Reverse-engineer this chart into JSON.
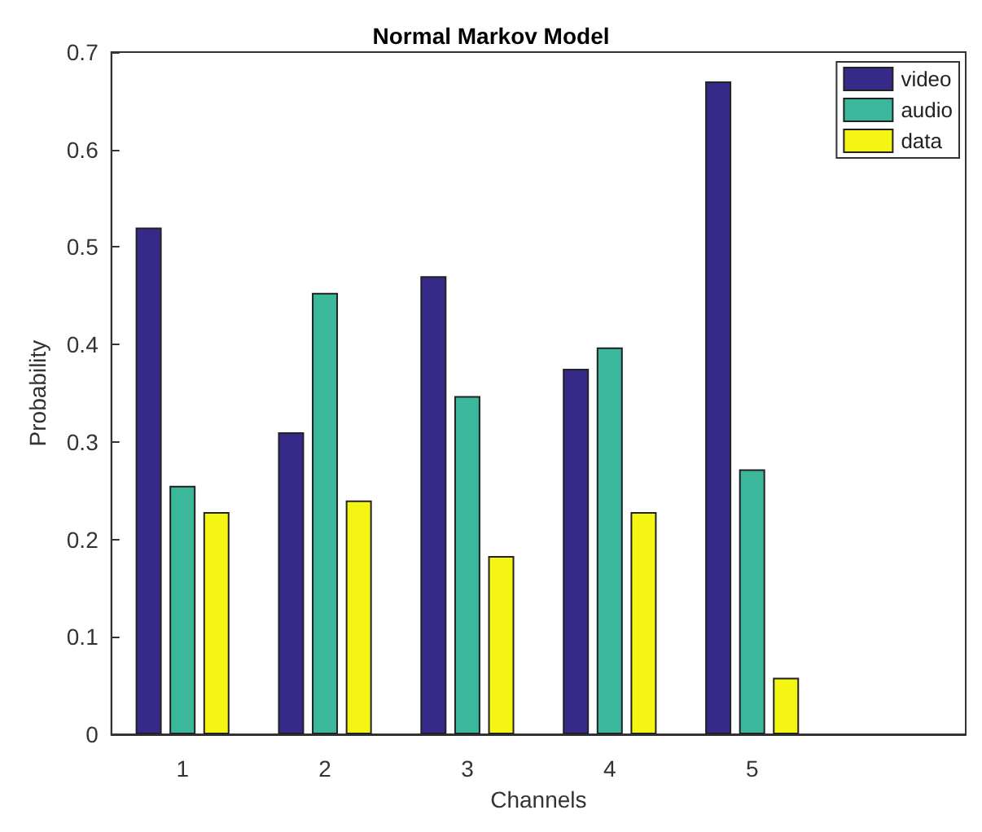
{
  "chart_data": {
    "type": "bar",
    "title": "Normal Markov Model",
    "xlabel": "Channels",
    "ylabel": "Probability",
    "categories": [
      "1",
      "2",
      "3",
      "4",
      "5"
    ],
    "series": [
      {
        "name": "video",
        "color": "#352a87",
        "values": [
          0.52,
          0.31,
          0.47,
          0.375,
          0.67
        ]
      },
      {
        "name": "audio",
        "color": "#3bb79b",
        "values": [
          0.255,
          0.453,
          0.347,
          0.397,
          0.272
        ]
      },
      {
        "name": "data",
        "color": "#f5f514",
        "values": [
          0.228,
          0.24,
          0.183,
          0.228,
          0.058
        ]
      }
    ],
    "ylim": [
      0,
      0.7
    ],
    "yticks": [
      0,
      0.1,
      0.2,
      0.3,
      0.4,
      0.5,
      0.6,
      0.7
    ],
    "grid": false,
    "legend": "top right"
  }
}
